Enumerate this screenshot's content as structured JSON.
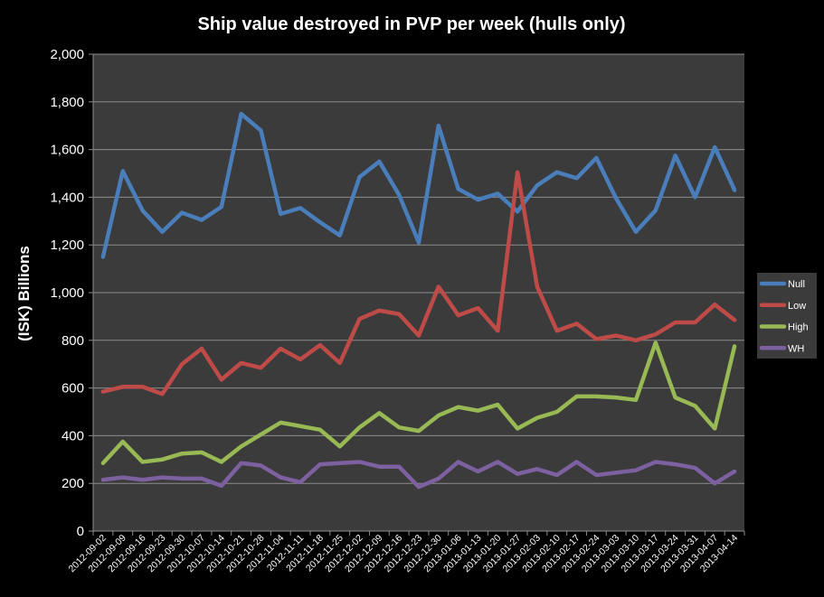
{
  "chart_data": {
    "type": "line",
    "title": "Ship value destroyed in PVP per week (hulls only)",
    "xlabel": "",
    "ylabel": "(ISK) Billions",
    "ylim": [
      0,
      2000
    ],
    "yticks": [
      0,
      200,
      400,
      600,
      800,
      1000,
      1200,
      1400,
      1600,
      1800,
      2000
    ],
    "ytick_labels": [
      "0",
      "200",
      "400",
      "600",
      "800",
      "1,000",
      "1,200",
      "1,400",
      "1,600",
      "1,800",
      "2,000"
    ],
    "grid": true,
    "legend_position": "right",
    "background_color": "#000000",
    "plot_background_color": "#3b3b3b",
    "categories": [
      "2012-09-02",
      "2012-09-09",
      "2012-09-16",
      "2012-09-23",
      "2012-09-30",
      "2012-10-07",
      "2012-10-14",
      "2012-10-21",
      "2012-10-28",
      "2012-11-04",
      "2012-11-11",
      "2012-11-18",
      "2012-11-25",
      "2012-12-02",
      "2012-12-09",
      "2012-12-16",
      "2012-12-23",
      "2012-12-30",
      "2013-01-06",
      "2013-01-13",
      "2013-01-20",
      "2013-01-27",
      "2013-02-03",
      "2013-02-10",
      "2013-02-17",
      "2013-02-24",
      "2013-03-03",
      "2013-03-10",
      "2013-03-17",
      "2013-03-24",
      "2013-03-31",
      "2013-04-07",
      "2013-04-14"
    ],
    "series": [
      {
        "name": "Null",
        "color": "#4a7ebb",
        "values": [
          1150,
          1510,
          1345,
          1255,
          1335,
          1305,
          1360,
          1750,
          1680,
          1330,
          1355,
          1295,
          1240,
          1485,
          1550,
          1410,
          1210,
          1700,
          1435,
          1390,
          1415,
          1340,
          1450,
          1505,
          1480,
          1565,
          1395,
          1255,
          1345,
          1575,
          1400,
          1610,
          1430
        ]
      },
      {
        "name": "Low",
        "color": "#be4b48",
        "values": [
          585,
          605,
          605,
          575,
          700,
          765,
          635,
          705,
          685,
          765,
          720,
          780,
          705,
          890,
          925,
          910,
          820,
          1025,
          905,
          935,
          840,
          1505,
          1025,
          840,
          870,
          805,
          820,
          800,
          825,
          875,
          875,
          950,
          885
        ]
      },
      {
        "name": "High",
        "color": "#98b954",
        "values": [
          285,
          375,
          290,
          300,
          325,
          330,
          290,
          355,
          405,
          455,
          440,
          425,
          355,
          435,
          495,
          435,
          420,
          485,
          520,
          505,
          530,
          430,
          475,
          500,
          565,
          565,
          560,
          550,
          790,
          560,
          525,
          430,
          775
        ]
      },
      {
        "name": "WH",
        "color": "#7d60a0",
        "values": [
          215,
          225,
          215,
          225,
          220,
          220,
          190,
          285,
          275,
          225,
          205,
          280,
          285,
          290,
          270,
          270,
          185,
          220,
          290,
          250,
          290,
          240,
          260,
          235,
          290,
          235,
          245,
          255,
          290,
          280,
          265,
          200,
          250
        ]
      }
    ]
  }
}
